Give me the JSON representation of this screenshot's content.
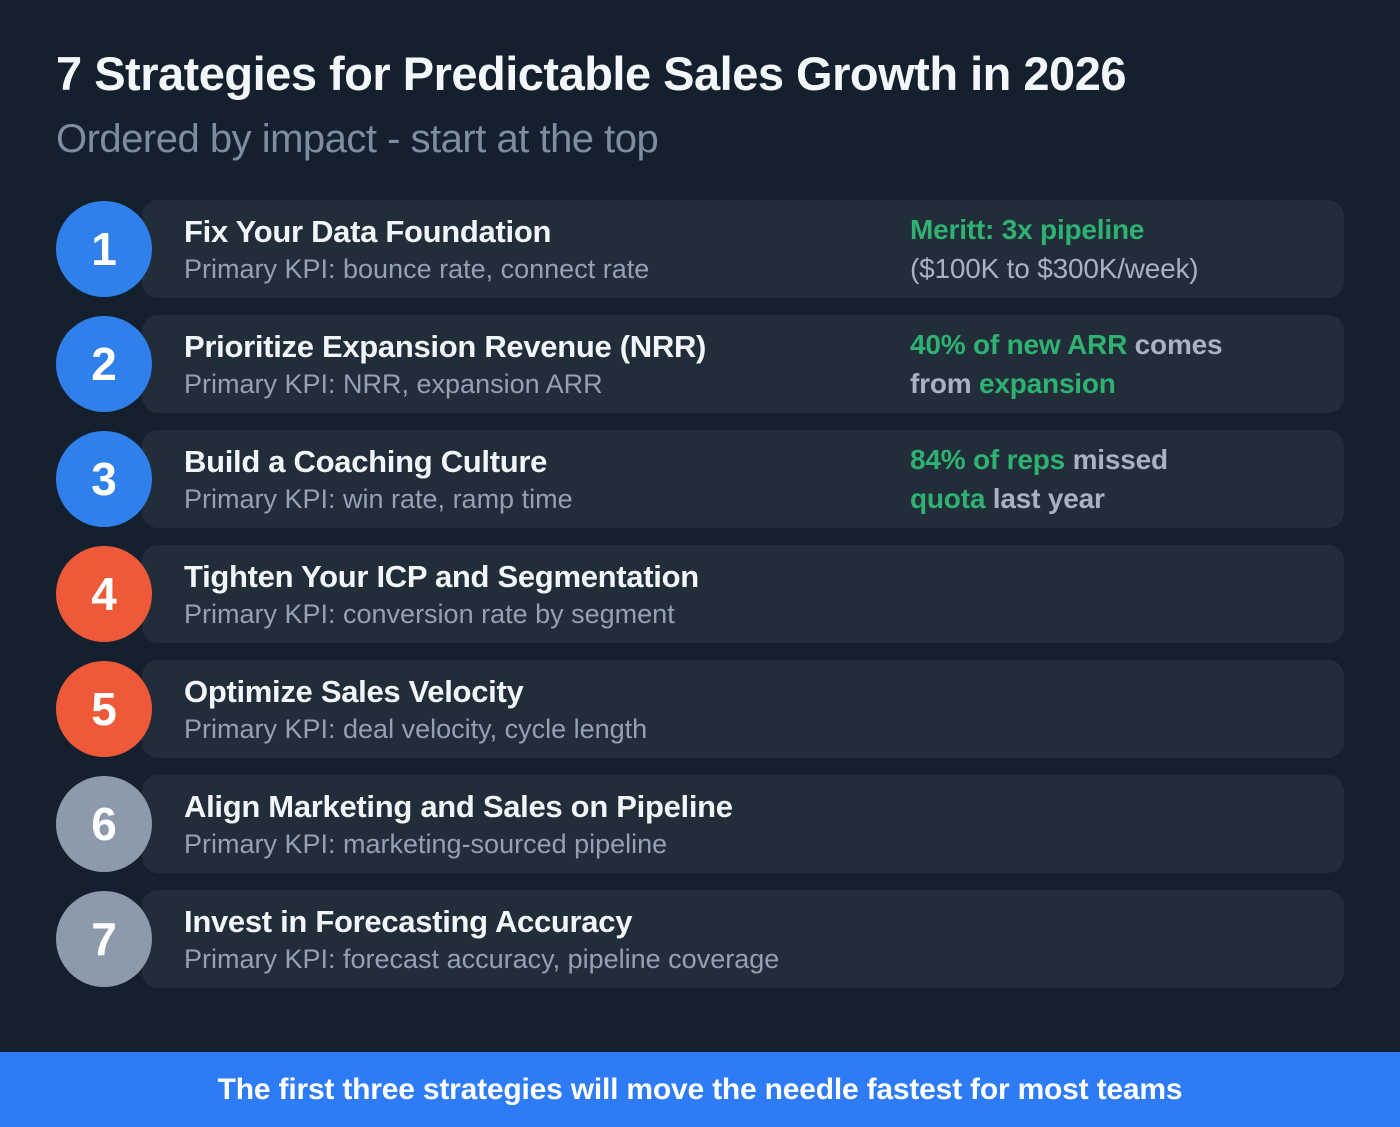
{
  "header": {
    "title": "7 Strategies for Predictable Sales Growth in 2026",
    "subtitle": "Ordered by impact - start at the top"
  },
  "rows": [
    {
      "number": "1",
      "title": "Fix Your Data Foundation",
      "kpi": "Primary KPI: bounce rate, connect rate",
      "badge_color": "#2f80ea",
      "stat": {
        "line1": [
          {
            "text": "Meritt: 3x pipeline",
            "tone": "green"
          }
        ],
        "line2": [
          {
            "text": "($100K to $300K/week)",
            "tone": "gray-regular"
          }
        ]
      }
    },
    {
      "number": "2",
      "title": "Prioritize Expansion Revenue (NRR)",
      "kpi": "Primary KPI: NRR, expansion ARR",
      "badge_color": "#2f80ea",
      "stat": {
        "line1": [
          {
            "text": "40% of new ARR",
            "tone": "green"
          },
          {
            "text": " comes",
            "tone": "gray"
          }
        ],
        "line2": [
          {
            "text": "from ",
            "tone": "gray"
          },
          {
            "text": "expansion",
            "tone": "green"
          }
        ]
      }
    },
    {
      "number": "3",
      "title": "Build a Coaching Culture",
      "kpi": "Primary KPI: win rate, ramp time",
      "badge_color": "#2f80ea",
      "stat": {
        "line1": [
          {
            "text": "84% of reps",
            "tone": "green"
          },
          {
            "text": " missed",
            "tone": "gray"
          }
        ],
        "line2": [
          {
            "text": "quota",
            "tone": "green"
          },
          {
            "text": " last year",
            "tone": "gray"
          }
        ]
      }
    },
    {
      "number": "4",
      "title": "Tighten Your ICP and Segmentation",
      "kpi": "Primary KPI: conversion rate by segment",
      "badge_color": "#ee5a38",
      "stat": null
    },
    {
      "number": "5",
      "title": "Optimize Sales Velocity",
      "kpi": "Primary KPI: deal velocity, cycle length",
      "badge_color": "#ee5a38",
      "stat": null
    },
    {
      "number": "6",
      "title": "Align Marketing and Sales on Pipeline",
      "kpi": "Primary KPI: marketing-sourced pipeline",
      "badge_color": "#8d9aab",
      "stat": null
    },
    {
      "number": "7",
      "title": "Invest in Forecasting Accuracy",
      "kpi": "Primary KPI: forecast accuracy, pipeline coverage",
      "badge_color": "#8d9aab",
      "stat": null
    }
  ],
  "footer": {
    "text": "The first three strategies will move the needle fastest for most teams"
  },
  "colors": {
    "background": "#15202e",
    "row_background": "rgba(255,255,255,0.06)",
    "badge_blue": "#2f80ea",
    "badge_orange": "#ee5a38",
    "badge_gray": "#8d9aab",
    "stat_green": "#2fb271",
    "stat_gray": "#a7b2c2",
    "footer_blue": "#2e7cf5"
  }
}
